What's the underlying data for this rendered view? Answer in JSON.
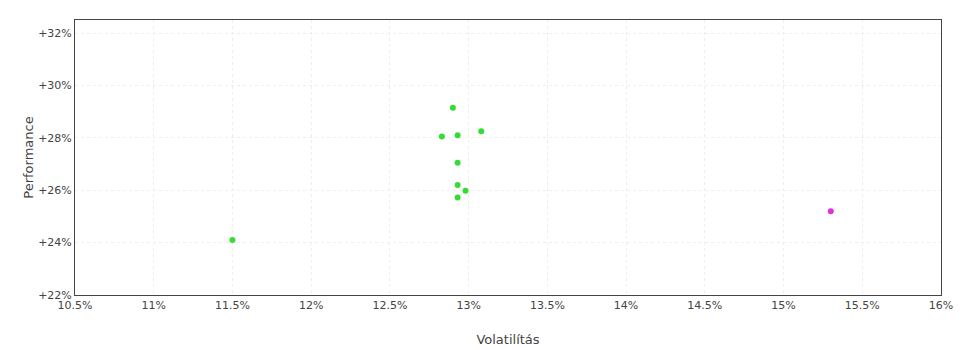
{
  "chart_data": {
    "type": "scatter",
    "xlabel": "Volatilítás",
    "ylabel": "Performance",
    "xlim": [
      0.105,
      0.16
    ],
    "ylim": [
      0.22,
      0.325
    ],
    "xticks": [
      {
        "value": 0.105,
        "label": "10.5%"
      },
      {
        "value": 0.11,
        "label": "11%"
      },
      {
        "value": 0.115,
        "label": "11.5%"
      },
      {
        "value": 0.12,
        "label": "12%"
      },
      {
        "value": 0.125,
        "label": "12.5%"
      },
      {
        "value": 0.13,
        "label": "13%"
      },
      {
        "value": 0.135,
        "label": "13.5%"
      },
      {
        "value": 0.14,
        "label": "14%"
      },
      {
        "value": 0.145,
        "label": "14.5%"
      },
      {
        "value": 0.15,
        "label": "15%"
      },
      {
        "value": 0.155,
        "label": "15.5%"
      },
      {
        "value": 0.16,
        "label": "16%"
      }
    ],
    "yticks": [
      {
        "value": 0.22,
        "label": "+22%"
      },
      {
        "value": 0.24,
        "label": "+24%"
      },
      {
        "value": 0.26,
        "label": "+26%"
      },
      {
        "value": 0.28,
        "label": "+28%"
      },
      {
        "value": 0.3,
        "label": "+30%"
      },
      {
        "value": 0.32,
        "label": "+32%"
      }
    ],
    "grid": true,
    "series": [
      {
        "color": "#33dd33",
        "x": [
          0.115,
          0.129,
          0.1293,
          0.1308,
          0.1283,
          0.1293,
          0.1293,
          0.1298,
          0.1293
        ],
        "values": [
          0.241,
          0.2915,
          0.281,
          0.2825,
          0.2805,
          0.2705,
          0.262,
          0.2598,
          0.2572
        ]
      },
      {
        "color": "#dd33dd",
        "x": [
          0.153
        ],
        "values": [
          0.252
        ]
      }
    ]
  }
}
